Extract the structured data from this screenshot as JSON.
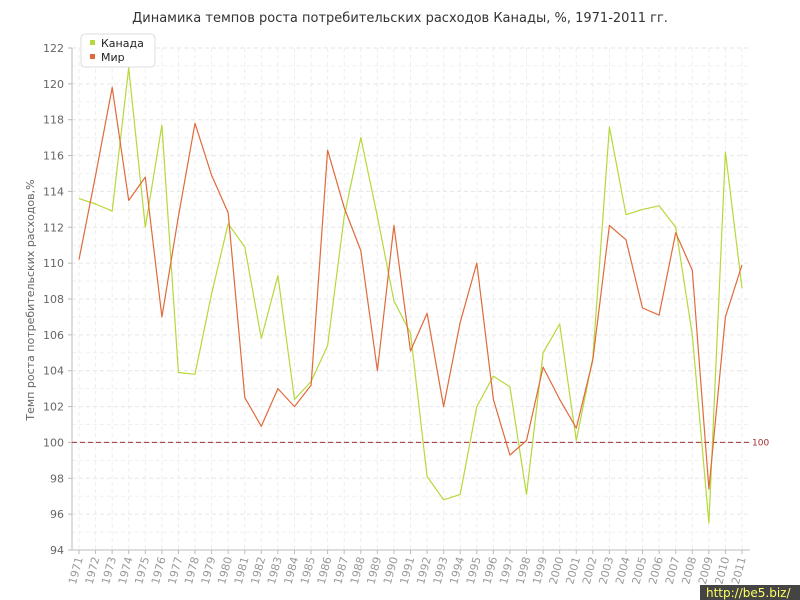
{
  "chart_data": {
    "type": "line",
    "title": "Динамика темпов роста потребительских расходов Канады, %, 1971-2011 гг.",
    "ylabel": "Темп роста потребительских расходов,%",
    "xlabel": "",
    "ylim": [
      94,
      122
    ],
    "yticks": [
      "94",
      "96",
      "98",
      "100",
      "102",
      "104",
      "106",
      "108",
      "110",
      "112",
      "114",
      "116",
      "118",
      "120",
      "122"
    ],
    "x": [
      "1971",
      "1972",
      "1973",
      "1974",
      "1975",
      "1976",
      "1977",
      "1978",
      "1979",
      "1980",
      "1981",
      "1982",
      "1983",
      "1984",
      "1985",
      "1986",
      "1987",
      "1988",
      "1989",
      "1990",
      "1991",
      "1992",
      "1993",
      "1994",
      "1995",
      "1996",
      "1997",
      "1998",
      "1999",
      "2000",
      "2001",
      "2002",
      "2003",
      "2004",
      "2005",
      "2006",
      "2007",
      "2008",
      "2009",
      "2010",
      "2011"
    ],
    "series": [
      {
        "name": "Канада",
        "color": "#b5d93a",
        "values": [
          113.6,
          113.3,
          112.9,
          120.9,
          112.0,
          117.7,
          103.9,
          103.8,
          108.3,
          112.2,
          110.9,
          105.8,
          109.3,
          102.4,
          103.4,
          105.4,
          112.6,
          117.0,
          112.6,
          107.9,
          106.1,
          98.1,
          96.8,
          97.1,
          102.0,
          103.7,
          103.1,
          97.1,
          105.0,
          106.6,
          100.1,
          104.7,
          117.6,
          112.7,
          113.0,
          113.2,
          112.0,
          106.0,
          95.5,
          116.2,
          108.6
        ]
      },
      {
        "name": "Мир",
        "color": "#e06a3b",
        "values": [
          110.2,
          114.9,
          119.8,
          113.5,
          114.8,
          107.0,
          112.6,
          117.8,
          114.9,
          112.8,
          102.5,
          100.9,
          103.0,
          102.0,
          103.2,
          116.3,
          113.1,
          110.7,
          104.0,
          112.1,
          105.1,
          107.2,
          102.0,
          106.7,
          110.0,
          102.4,
          99.3,
          100.1,
          104.2,
          102.4,
          100.8,
          104.6,
          112.1,
          111.3,
          107.5,
          107.1,
          111.7,
          109.6,
          97.4,
          107.0,
          109.9
        ]
      }
    ],
    "reference_line": {
      "value": 100,
      "label": "100",
      "color": "#a03030"
    },
    "grid": true,
    "legend": "top-left"
  },
  "watermark": "http://be5.biz/"
}
